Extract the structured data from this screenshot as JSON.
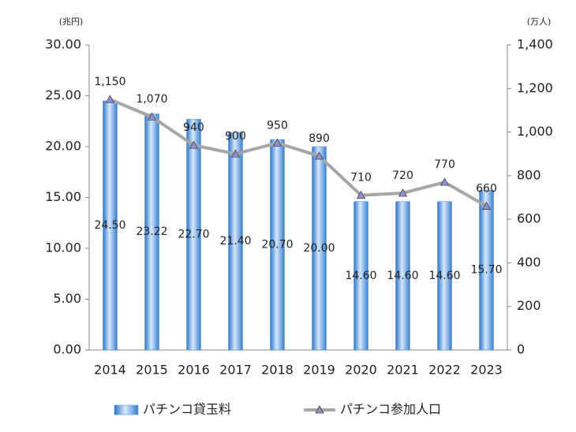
{
  "chart_data": {
    "type": "bar-line",
    "y_unit": "(兆円)",
    "y2_unit": "(万人)",
    "categories": [
      "2014",
      "2015",
      "2016",
      "2017",
      "2018",
      "2019",
      "2020",
      "2021",
      "2022",
      "2023"
    ],
    "series": [
      {
        "name": "パチンコ貸玉料",
        "type": "bar",
        "color": "#4a8fd8",
        "values": [
          24.5,
          23.22,
          22.7,
          21.4,
          20.7,
          20.0,
          14.6,
          14.6,
          14.6,
          15.7
        ],
        "value_labels": [
          "24.50",
          "23.22",
          "22.70",
          "21.40",
          "20.70",
          "20.00",
          "14.60",
          "14.60",
          "14.60",
          "15.70"
        ]
      },
      {
        "name": "パチンコ参加人口",
        "type": "line",
        "axis": "y2",
        "color": "#a6a6a6",
        "marker_color": "#8f8fd8",
        "values": [
          1150,
          1070,
          940,
          900,
          950,
          890,
          710,
          720,
          770,
          660
        ],
        "value_labels": [
          "1,150",
          "1,070",
          "940",
          "900",
          "950",
          "890",
          "710",
          "720",
          "770",
          "660"
        ]
      }
    ],
    "ylim": [
      0,
      30
    ],
    "yticks": [
      {
        "value": 0,
        "label": "0.00"
      },
      {
        "value": 5,
        "label": "5.00"
      },
      {
        "value": 10,
        "label": "10.00"
      },
      {
        "value": 15,
        "label": "15.00"
      },
      {
        "value": 20,
        "label": "20.00"
      },
      {
        "value": 25,
        "label": "25.00"
      },
      {
        "value": 30,
        "label": "30.00"
      }
    ],
    "y2lim": [
      0,
      1400
    ],
    "y2ticks": [
      0,
      200,
      400,
      600,
      800,
      {
        "value": 1000,
        "label": "1,000"
      },
      {
        "value": 1200,
        "label": "1,200"
      },
      {
        "value": 1400,
        "label": "1,400"
      }
    ],
    "grid": false
  }
}
